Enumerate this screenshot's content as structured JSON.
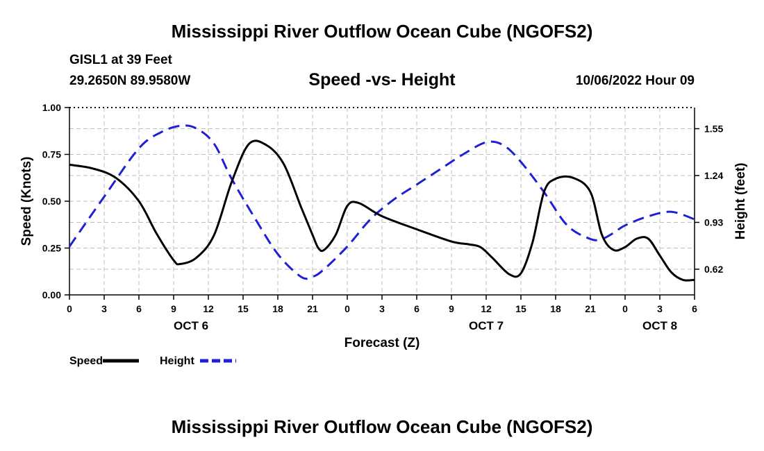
{
  "page": {
    "title": "Mississippi River Outflow Ocean Cube (NGOFS2)",
    "station": "GISL1 at 39 Feet",
    "coordinates": "29.2650N  89.9580W",
    "subtitle": "Speed -vs- Height",
    "timestamp": "10/06/2022 Hour 09",
    "bottom_title": "Mississippi River Outflow Ocean Cube (NGOFS2)"
  },
  "chart_data": {
    "type": "line",
    "title": "Speed -vs- Height",
    "xlabel": "Forecast (Z)",
    "ylabel": "Speed (Knots)",
    "y2label": "Height (feet)",
    "xlim": [
      0,
      54
    ],
    "ylim": [
      0,
      1
    ],
    "y2lim": [
      0.45,
      1.69
    ],
    "x_tick_values": [
      0,
      3,
      6,
      9,
      12,
      15,
      18,
      21,
      24,
      27,
      30,
      33,
      36,
      39,
      42,
      45,
      48,
      51,
      54
    ],
    "x_tick_labels": [
      "0",
      "3",
      "6",
      "9",
      "12",
      "15",
      "18",
      "21",
      "0",
      "3",
      "6",
      "9",
      "12",
      "15",
      "18",
      "21",
      "0",
      "3",
      "6"
    ],
    "y_ticks": [
      0,
      0.25,
      0.5,
      0.75,
      1.0
    ],
    "y_tick_labels": [
      "0.00",
      "0.25",
      "0.50",
      "0.75",
      "1.00"
    ],
    "y2_ticks": [
      0.62,
      0.93,
      1.24,
      1.55
    ],
    "y2_tick_labels": [
      "0.62",
      "0.93",
      "1.24",
      "1.55"
    ],
    "day_labels": [
      {
        "x": 10.5,
        "label": "OCT 6"
      },
      {
        "x": 36,
        "label": "OCT 7"
      },
      {
        "x": 51,
        "label": "OCT 8"
      }
    ],
    "grid": true,
    "legend_position": "bottom-left",
    "series": [
      {
        "name": "Speed",
        "axis": "left",
        "color": "#000000",
        "dash": "solid",
        "x": [
          0,
          2,
          4,
          6,
          7.5,
          9,
          9.6,
          11,
          12.5,
          14,
          15.5,
          17,
          18.5,
          20,
          21,
          21.5,
          22,
          23,
          24,
          25,
          27,
          30,
          33,
          34.5,
          35.5,
          36.5,
          38,
          39,
          40,
          41,
          42,
          43.5,
          45,
          46,
          47,
          48,
          49,
          50,
          51,
          52,
          53,
          54
        ],
        "values": [
          0.695,
          0.675,
          0.625,
          0.5,
          0.33,
          0.185,
          0.165,
          0.2,
          0.32,
          0.6,
          0.805,
          0.8,
          0.7,
          0.47,
          0.32,
          0.25,
          0.24,
          0.32,
          0.475,
          0.49,
          0.42,
          0.35,
          0.285,
          0.27,
          0.255,
          0.2,
          0.11,
          0.115,
          0.28,
          0.55,
          0.62,
          0.625,
          0.55,
          0.32,
          0.24,
          0.255,
          0.3,
          0.3,
          0.21,
          0.12,
          0.08,
          0.08
        ]
      },
      {
        "name": "Height",
        "axis": "right",
        "color": "#1f1fd6",
        "dash": "dashed",
        "x": [
          0,
          3,
          6,
          8,
          9.7,
          11,
          12.5,
          14,
          16,
          18,
          20,
          21,
          22,
          24,
          26,
          28,
          30,
          32,
          34,
          36,
          37.5,
          39,
          41,
          43,
          45,
          46,
          47,
          48,
          50,
          52,
          54
        ],
        "values": [
          0.77,
          1.1,
          1.42,
          1.53,
          1.57,
          1.55,
          1.45,
          1.22,
          0.96,
          0.72,
          0.57,
          0.57,
          0.62,
          0.77,
          0.95,
          1.08,
          1.18,
          1.28,
          1.38,
          1.46,
          1.44,
          1.33,
          1.13,
          0.91,
          0.82,
          0.82,
          0.86,
          0.91,
          0.97,
          1.0,
          0.95
        ]
      }
    ]
  }
}
